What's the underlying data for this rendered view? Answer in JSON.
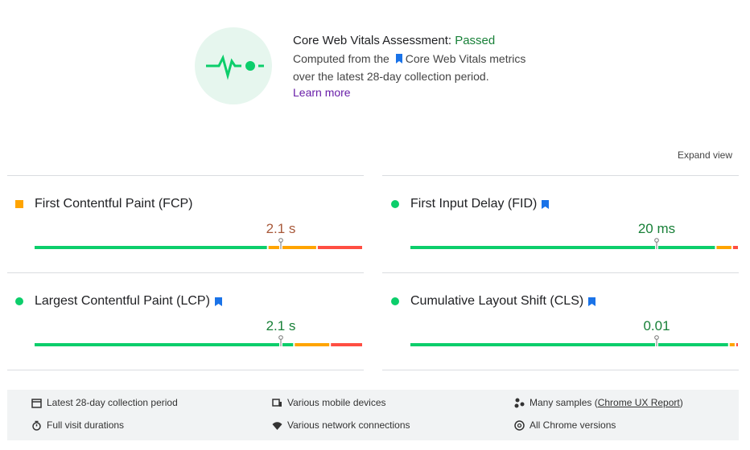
{
  "header": {
    "title": "Core Web Vitals Assessment:",
    "status": "Passed",
    "line1_start": "Computed from the",
    "line1_link": "Core Web Vitals metrics",
    "line2": "over the latest 28-day collection period.",
    "learn_more": "Learn more"
  },
  "expand_view": "Expand view",
  "metrics": [
    {
      "name": "First Contentful Paint (FCP)",
      "value": "2.1 s",
      "bookmark": false,
      "color": "#ffa400",
      "shape": "square",
      "value_color": "#a8593a",
      "distribution": [
        71,
        15,
        14
      ]
    },
    {
      "name": "First Input Delay (FID)",
      "value": "20 ms",
      "bookmark": true,
      "color": "#0cce6b",
      "shape": "circle",
      "value_color": "#188038",
      "distribution": [
        93,
        5,
        2
      ]
    },
    {
      "name": "Largest Contentful Paint (LCP)",
      "value": "2.1 s",
      "bookmark": true,
      "color": "#0cce6b",
      "shape": "circle",
      "value_color": "#188038",
      "distribution": [
        79,
        11,
        10
      ]
    },
    {
      "name": "Cumulative Layout Shift (CLS)",
      "value": "0.01",
      "bookmark": true,
      "color": "#0cce6b",
      "shape": "circle",
      "value_color": "#188038",
      "distribution": [
        97,
        2,
        1
      ]
    }
  ],
  "footer": {
    "period": "Latest 28-day collection period",
    "devices": "Various mobile devices",
    "samples": "Many samples (",
    "samples_link": "Chrome UX Report",
    "samples_end": ")",
    "durations": "Full visit durations",
    "network": "Various network connections",
    "versions": "All Chrome versions"
  }
}
